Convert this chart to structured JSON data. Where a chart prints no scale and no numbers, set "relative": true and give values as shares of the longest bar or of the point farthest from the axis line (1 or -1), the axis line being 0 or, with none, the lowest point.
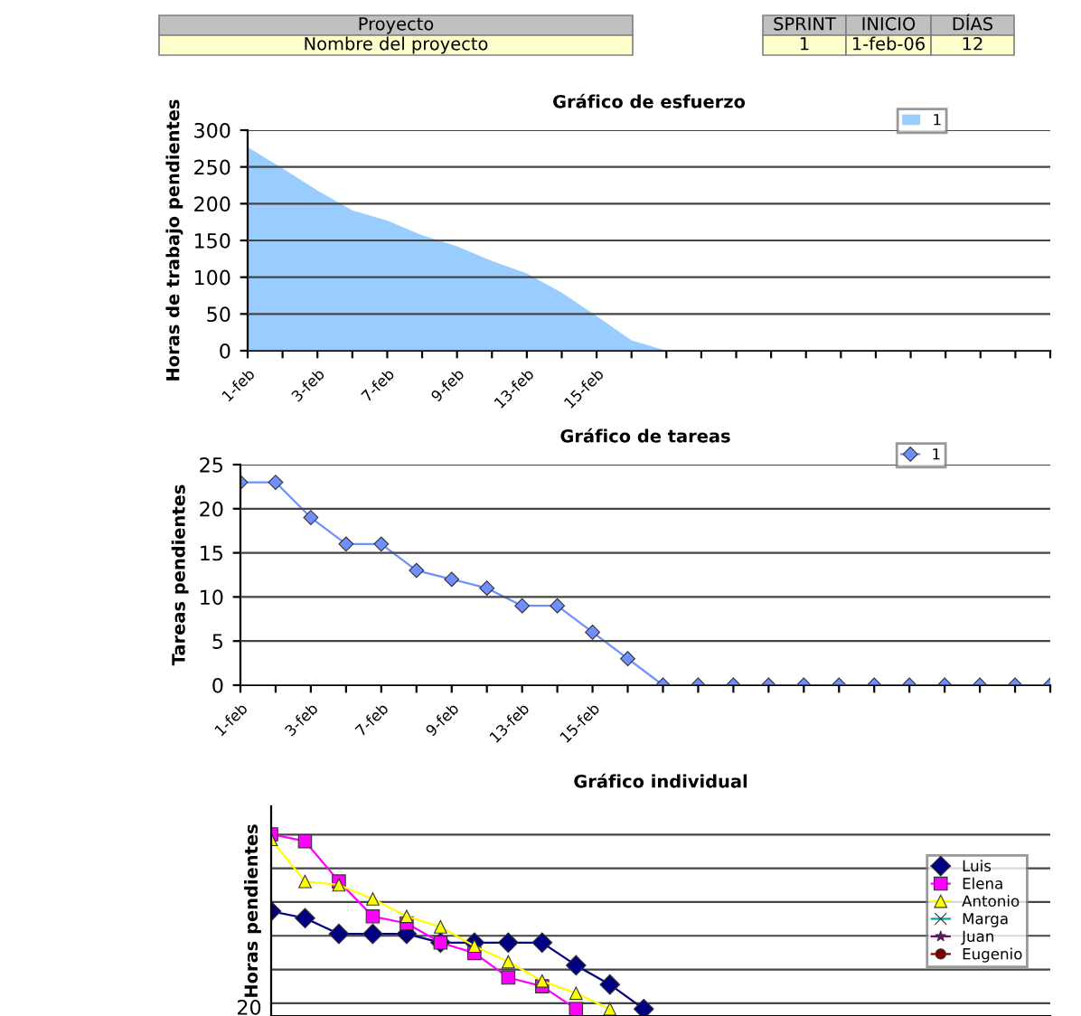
{
  "chart_data": [
    {
      "type": "area",
      "title": "Gráfico de esfuerzo",
      "ylabel": "Horas de trabajo pendientes",
      "annotations": [
        "Proyecto",
        "Nombre del proyecto",
        "SPRINT",
        "INICIO",
        "DÍAS",
        "1",
        "1-feb-06",
        "12"
      ],
      "categories": [
        "1-feb",
        null,
        "3-feb",
        null,
        "7-feb",
        null,
        "9-feb",
        null,
        "13-feb",
        null,
        "15-feb",
        null,
        null,
        null,
        null,
        null,
        null,
        null,
        null,
        null,
        null,
        null,
        null,
        null
      ],
      "series": [
        {
          "name": "1",
          "color": "#99ccff",
          "values": [
            277,
            248,
            218,
            191,
            177,
            157,
            142,
            122,
            105,
            79,
            47,
            14,
            0,
            0,
            0,
            0,
            0,
            0,
            0,
            0,
            0,
            0,
            0,
            0
          ]
        }
      ],
      "ylim": [
        0,
        300
      ],
      "yticks": [
        0,
        50,
        100,
        150,
        200,
        250,
        300
      ],
      "grid": "y",
      "legend": "top right"
    },
    {
      "type": "line",
      "title": "Gráfico de tareas",
      "ylabel": "Tareas pendientes",
      "categories": [
        "1-feb",
        null,
        "3-feb",
        null,
        "7-feb",
        null,
        "9-feb",
        null,
        "13-feb",
        null,
        "15-feb",
        null,
        null,
        null,
        null,
        null,
        null,
        null,
        null,
        null,
        null,
        null,
        null,
        null
      ],
      "series": [
        {
          "name": "1",
          "color": "#6f8fff",
          "marker": "diamond",
          "values": [
            23,
            23,
            19,
            16,
            16,
            13,
            12,
            11,
            9,
            9,
            6,
            3,
            0,
            0,
            0,
            0,
            0,
            0,
            0,
            0,
            0,
            0,
            0,
            0
          ]
        }
      ],
      "ylim": [
        0,
        25
      ],
      "yticks": [
        0,
        5,
        10,
        15,
        20,
        25
      ],
      "grid": "y",
      "legend": "top right"
    },
    {
      "type": "line",
      "title": "Gráfico individual",
      "ylabel": "Horas pendientes",
      "categories": [
        null,
        null,
        null,
        null,
        null,
        null,
        null,
        null,
        null,
        null,
        null,
        null,
        null,
        null,
        null,
        null,
        null,
        null,
        null,
        null,
        null,
        null,
        null,
        null
      ],
      "series": [
        {
          "name": "Luis",
          "color": "#000080",
          "marker": "diamond",
          "values": [
            0.56,
            0.52,
            0.43,
            0.43,
            0.43,
            0.38,
            0.38,
            0.38,
            0.38,
            0.25,
            0.14,
            0,
            null,
            null,
            null,
            null,
            null,
            null,
            null,
            null,
            null,
            null,
            null,
            null
          ]
        },
        {
          "name": "Elena",
          "color": "#ff00ff",
          "marker": "square",
          "values": [
            1,
            0.96,
            0.73,
            0.53,
            0.49,
            0.38,
            0.32,
            0.18,
            0.13,
            0,
            null,
            null,
            null,
            null,
            null,
            null,
            null,
            null,
            null,
            null,
            null,
            null,
            null,
            null
          ]
        },
        {
          "name": "Antonio",
          "color": "#ffff00",
          "marker": "triangle",
          "values": [
            0.97,
            0.73,
            0.71,
            0.63,
            0.53,
            0.47,
            0.36,
            0.27,
            0.16,
            0.09,
            0,
            null,
            null,
            null,
            null,
            null,
            null,
            null,
            null,
            null,
            null,
            null,
            null,
            null
          ]
        },
        {
          "name": "Marga",
          "color": "#00a0a0",
          "marker": "cross",
          "values": [
            null,
            null,
            null,
            null,
            null,
            null,
            null,
            null,
            null,
            null,
            null,
            null,
            null,
            null,
            null,
            null,
            null,
            null,
            null,
            null,
            null,
            null,
            null,
            null
          ]
        },
        {
          "name": "Juan",
          "color": "#800080",
          "marker": "star",
          "values": [
            null,
            null,
            null,
            null,
            null,
            null,
            null,
            null,
            null,
            null,
            null,
            null,
            null,
            null,
            null,
            null,
            null,
            null,
            null,
            null,
            null,
            null,
            null,
            null
          ]
        },
        {
          "name": "Eugenio",
          "color": "#800000",
          "marker": "circle",
          "values": [
            null,
            null,
            null,
            null,
            null,
            null,
            null,
            null,
            null,
            null,
            null,
            null,
            null,
            null,
            null,
            null,
            null,
            null,
            null,
            null,
            null,
            null,
            null,
            null
          ]
        }
      ],
      "relative": true,
      "annotations": [
        "20"
      ],
      "grid": "y",
      "legend": "right"
    }
  ]
}
